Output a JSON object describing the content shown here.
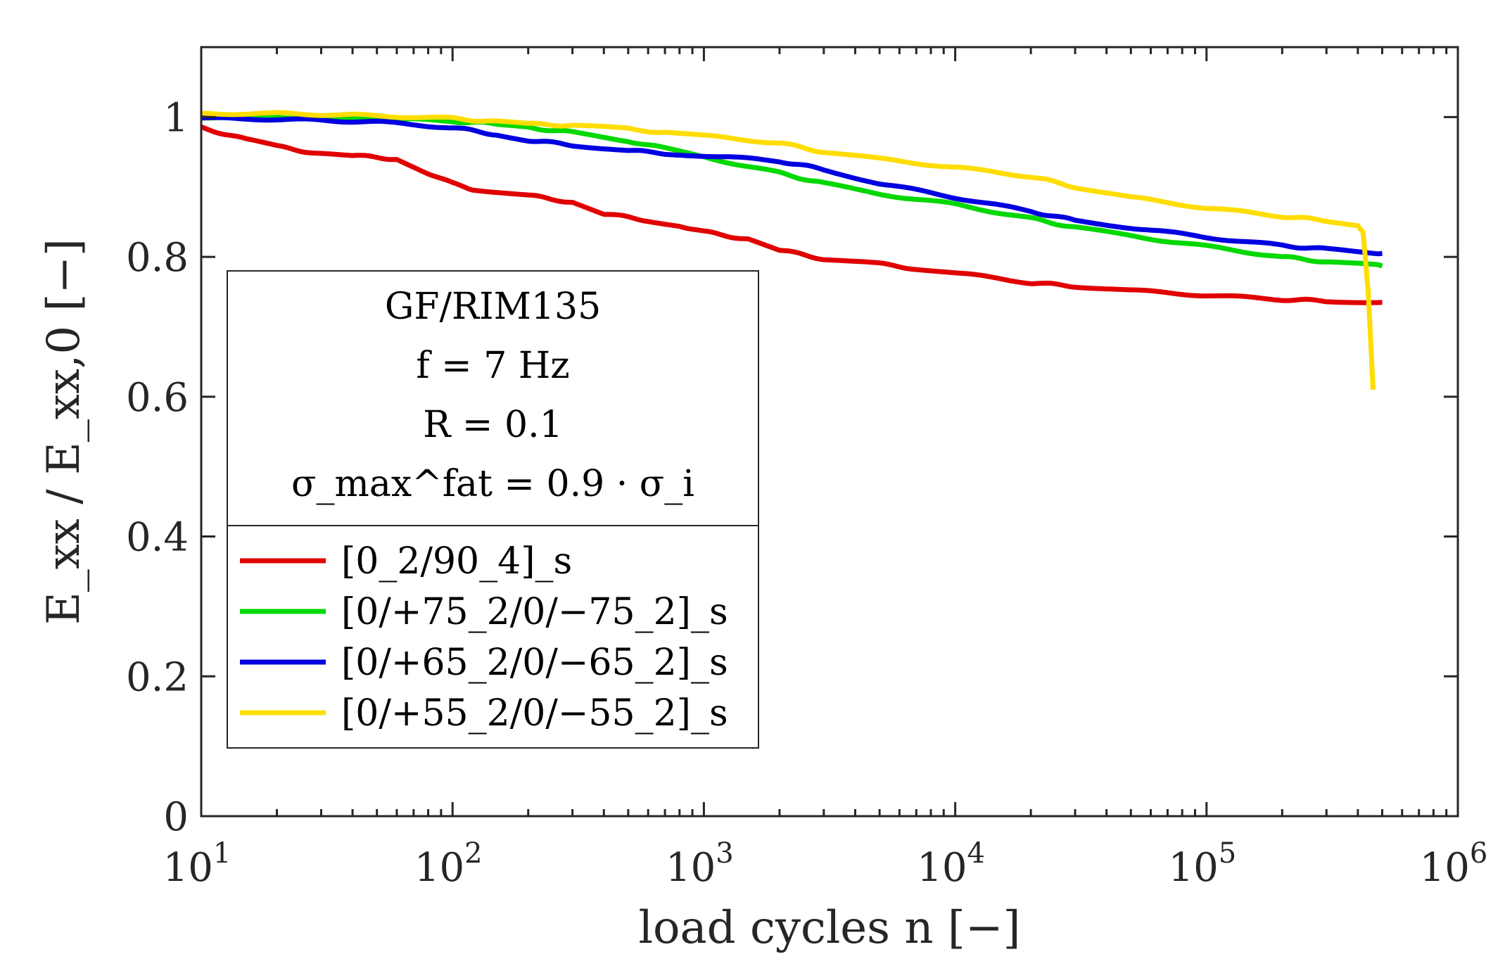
{
  "chart_data": {
    "type": "line",
    "title": "",
    "xlabel": "load cycles n [−]",
    "ylabel": "E_xx / E_xx,0 [−]",
    "xscale": "log",
    "xlim": [
      10,
      1000000
    ],
    "ylim": [
      0,
      1.1
    ],
    "xticks": [
      10,
      100,
      1000,
      10000,
      100000,
      1000000
    ],
    "xtick_labels": [
      {
        "base": "10",
        "exp": "1"
      },
      {
        "base": "10",
        "exp": "2"
      },
      {
        "base": "10",
        "exp": "3"
      },
      {
        "base": "10",
        "exp": "4"
      },
      {
        "base": "10",
        "exp": "5"
      },
      {
        "base": "10",
        "exp": "6"
      }
    ],
    "yticks": [
      0,
      0.2,
      0.4,
      0.6,
      0.8,
      1
    ],
    "ytick_labels": [
      "0",
      "0.2",
      "0.4",
      "0.6",
      "0.8",
      "1"
    ],
    "grid": false,
    "legend_position": "left",
    "legend_title": [
      "GF/RIM135",
      "f = 7 Hz",
      "R = 0.1",
      "σ_max^fat = 0.9 · σ_i"
    ],
    "series": [
      {
        "name": "[0_2/90_4]_s",
        "color": "#e00000",
        "x": [
          10,
          15,
          20,
          30,
          40,
          60,
          80,
          100,
          120,
          200,
          300,
          400,
          600,
          800,
          1000,
          1500,
          2000,
          3000,
          5000,
          7000,
          10000,
          20000,
          30000,
          50000,
          100000,
          200000,
          300000,
          500000
        ],
        "y": [
          0.985,
          0.968,
          0.958,
          0.947,
          0.945,
          0.94,
          0.92,
          0.905,
          0.897,
          0.888,
          0.878,
          0.862,
          0.852,
          0.845,
          0.836,
          0.825,
          0.81,
          0.797,
          0.79,
          0.783,
          0.777,
          0.763,
          0.758,
          0.752,
          0.745,
          0.739,
          0.737,
          0.735
        ]
      },
      {
        "name": "[0/+75_2/0/−75_2]_s",
        "color": "#00d800",
        "x": [
          10,
          20,
          50,
          100,
          150,
          200,
          300,
          500,
          700,
          1000,
          2000,
          3000,
          5000,
          10000,
          20000,
          30000,
          50000,
          100000,
          200000,
          300000,
          500000
        ],
        "y": [
          1.0,
          1.0,
          0.998,
          0.994,
          0.99,
          0.985,
          0.978,
          0.966,
          0.955,
          0.943,
          0.92,
          0.905,
          0.89,
          0.875,
          0.855,
          0.842,
          0.83,
          0.815,
          0.8,
          0.793,
          0.787
        ]
      },
      {
        "name": "[0/+65_2/0/−65_2]_s",
        "color": "#0000e0",
        "x": [
          10,
          20,
          50,
          100,
          150,
          200,
          300,
          500,
          700,
          1000,
          2000,
          3000,
          5000,
          10000,
          20000,
          30000,
          50000,
          100000,
          200000,
          300000,
          500000
        ],
        "y": [
          0.998,
          0.997,
          0.993,
          0.985,
          0.975,
          0.967,
          0.96,
          0.952,
          0.948,
          0.945,
          0.937,
          0.925,
          0.905,
          0.885,
          0.865,
          0.852,
          0.842,
          0.828,
          0.816,
          0.811,
          0.805
        ]
      },
      {
        "name": "[0/+55_2/0/−55_2]_s",
        "color": "#ffdd00",
        "x": [
          10,
          20,
          50,
          100,
          150,
          200,
          300,
          500,
          700,
          1000,
          2000,
          3000,
          5000,
          10000,
          20000,
          30000,
          50000,
          100000,
          200000,
          300000,
          400000,
          420000,
          440000,
          460000
        ],
        "y": [
          1.005,
          1.005,
          1.002,
          0.998,
          0.993,
          0.99,
          0.988,
          0.983,
          0.978,
          0.973,
          0.963,
          0.95,
          0.94,
          0.928,
          0.915,
          0.9,
          0.885,
          0.87,
          0.858,
          0.852,
          0.845,
          0.835,
          0.75,
          0.61
        ]
      }
    ]
  }
}
